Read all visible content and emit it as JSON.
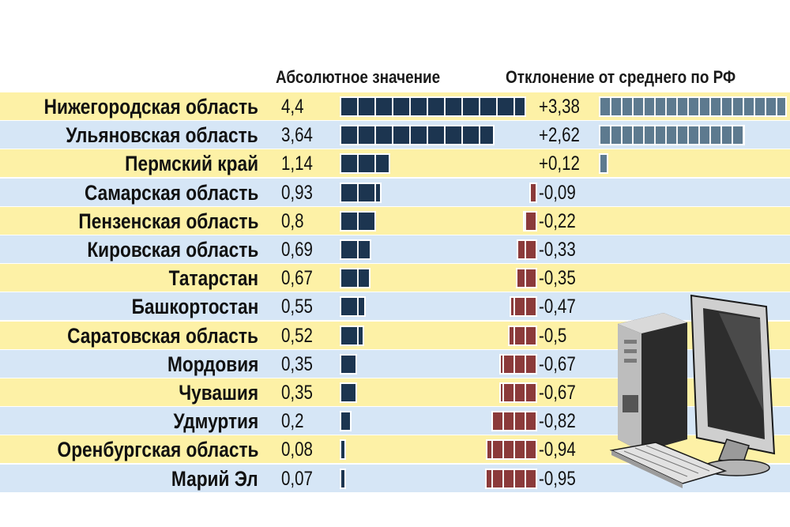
{
  "chart_data": {
    "type": "bar",
    "headers": {
      "absolute": "Абсолютное значение",
      "deviation": "Отклонение от среднего по РФ"
    },
    "categories": [
      "Нижегородская область",
      "Ульяновская область",
      "Пермский край",
      "Самарская область",
      "Пензенская область",
      "Кировская область",
      "Татарстан",
      "Башкортостан",
      "Саратовская область",
      "Мордовия",
      "Чувашия",
      "Удмуртия",
      "Оренбургская область",
      "Марий Эл"
    ],
    "series": [
      {
        "name": "Абсолютное значение",
        "values": [
          4.4,
          3.64,
          1.14,
          0.93,
          0.8,
          0.69,
          0.67,
          0.55,
          0.52,
          0.35,
          0.35,
          0.2,
          0.08,
          0.07
        ],
        "labels": [
          "4,4",
          "3,64",
          "1,14",
          "0,93",
          "0,8",
          "0,69",
          "0,67",
          "0,55",
          "0,52",
          "0,35",
          "0,35",
          "0,2",
          "0,08",
          "0,07"
        ]
      },
      {
        "name": "Отклонение от среднего по РФ",
        "values": [
          3.38,
          2.62,
          0.12,
          -0.09,
          -0.22,
          -0.33,
          -0.35,
          -0.47,
          -0.5,
          -0.67,
          -0.67,
          -0.82,
          -0.94,
          -0.95
        ],
        "labels": [
          "+3,38",
          "+2,62",
          "+0,12",
          "-0,09",
          "-0,22",
          "-0,33",
          "-0,35",
          "-0,47",
          "-0,5",
          "-0,67",
          "-0,67",
          "-0,82",
          "-0,94",
          "-0,95"
        ]
      }
    ],
    "colors": {
      "row_yellow": "#fdf1a6",
      "row_blue": "#d6e6f6",
      "bar_absolute": "#1c3550",
      "bar_positive": "#5d7a8f",
      "bar_negative": "#8b3a3a"
    }
  },
  "illustration": {
    "icon": "desktop-computer-icon"
  }
}
